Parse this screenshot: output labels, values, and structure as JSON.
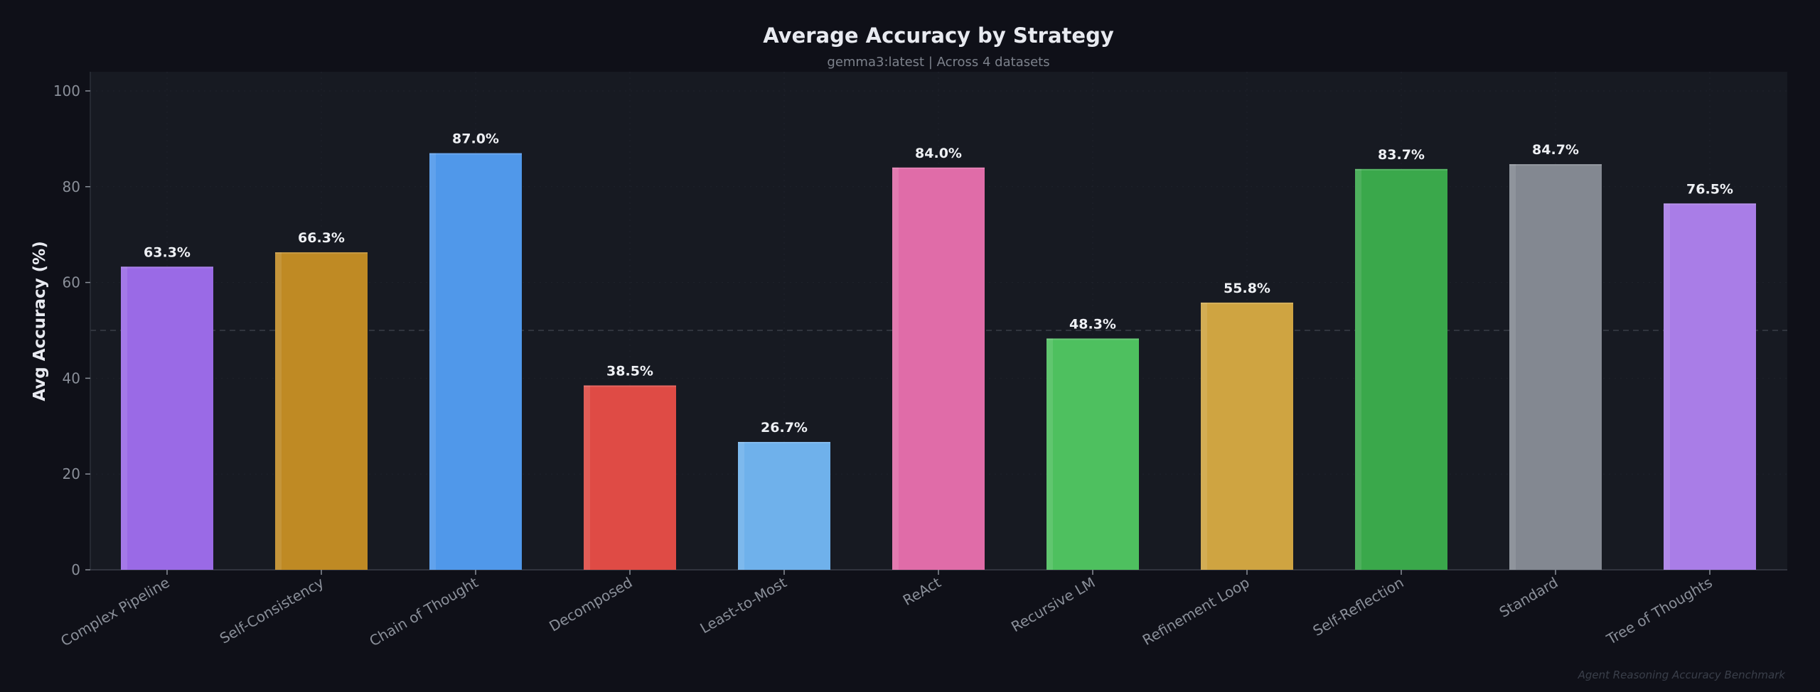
{
  "chart_data": {
    "type": "bar",
    "title": "Average Accuracy by Strategy",
    "subtitle": "gemma3:latest | Across 4 datasets",
    "xlabel": "",
    "ylabel": "Avg Accuracy (%)",
    "ylim": [
      0,
      104
    ],
    "yticks": [
      0,
      20,
      40,
      60,
      80,
      100
    ],
    "reference_line": 50,
    "grid": true,
    "footer": "Agent Reasoning Accuracy Benchmark",
    "categories": [
      "Complex Pipeline",
      "Self-Consistency",
      "Chain of Thought",
      "Decomposed",
      "Least-to-Most",
      "ReAct",
      "Recursive LM",
      "Refinement Loop",
      "Self-Reflection",
      "Standard",
      "Tree of Thoughts"
    ],
    "values": [
      63.3,
      66.3,
      87.0,
      38.5,
      26.7,
      84.0,
      48.3,
      55.8,
      83.7,
      84.7,
      76.5
    ],
    "labels": [
      "63.3%",
      "66.3%",
      "87.0%",
      "38.5%",
      "26.7%",
      "84.0%",
      "48.3%",
      "55.8%",
      "83.7%",
      "84.7%",
      "76.5%"
    ],
    "colors": [
      "#9a6ae6",
      "#bf8a24",
      "#5098ea",
      "#df4b45",
      "#6fb1eb",
      "#e06ca8",
      "#4ec05f",
      "#cfa441",
      "#3aa84b",
      "#838891",
      "#a97de7"
    ]
  },
  "colors": {
    "background": "#0f1018",
    "plot_background": "#171a22",
    "text": "#e8eaf0",
    "muted": "#8a8f99"
  }
}
